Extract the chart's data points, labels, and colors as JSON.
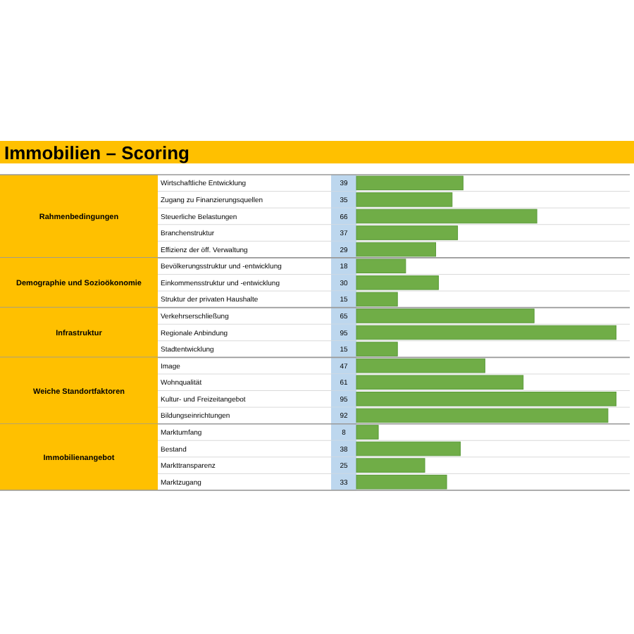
{
  "chart_data": {
    "type": "bar",
    "orientation": "horizontal",
    "title": "Immobilien – Scoring",
    "categories": [
      "Wirtschaftliche Entwicklung",
      "Zugang zu Finanzierungsquellen",
      "Steuerliche Belastungen",
      "Branchenstruktur",
      "Effizienz der öff. Verwaltung",
      "Bevölkerungsstruktur und -entwicklung",
      "Einkommensstruktur und -entwicklung",
      "Struktur der privaten Haushalte",
      "Verkehrserschließung",
      "Regionale Anbindung",
      "Stadtentwicklung",
      "Image",
      "Wohnqualität",
      "Kultur- und Freizeitangebot",
      "Bildungseinrichtungen",
      "Marktumfang",
      "Bestand",
      "Markttransparenz",
      "Marktzugang"
    ],
    "values": [
      39,
      35,
      66,
      37,
      29,
      18,
      30,
      15,
      65,
      95,
      15,
      47,
      61,
      95,
      92,
      8,
      38,
      25,
      33
    ],
    "color": "#70ad47",
    "xlim": [
      0,
      100
    ],
    "data_labels": true,
    "annotations": [
      "Rahmenbedingungen",
      "Demographie und Sozioökonomie",
      "Infrastruktur",
      "Weiche Standortfaktoren",
      "Immobilienangebot"
    ]
  }
}
